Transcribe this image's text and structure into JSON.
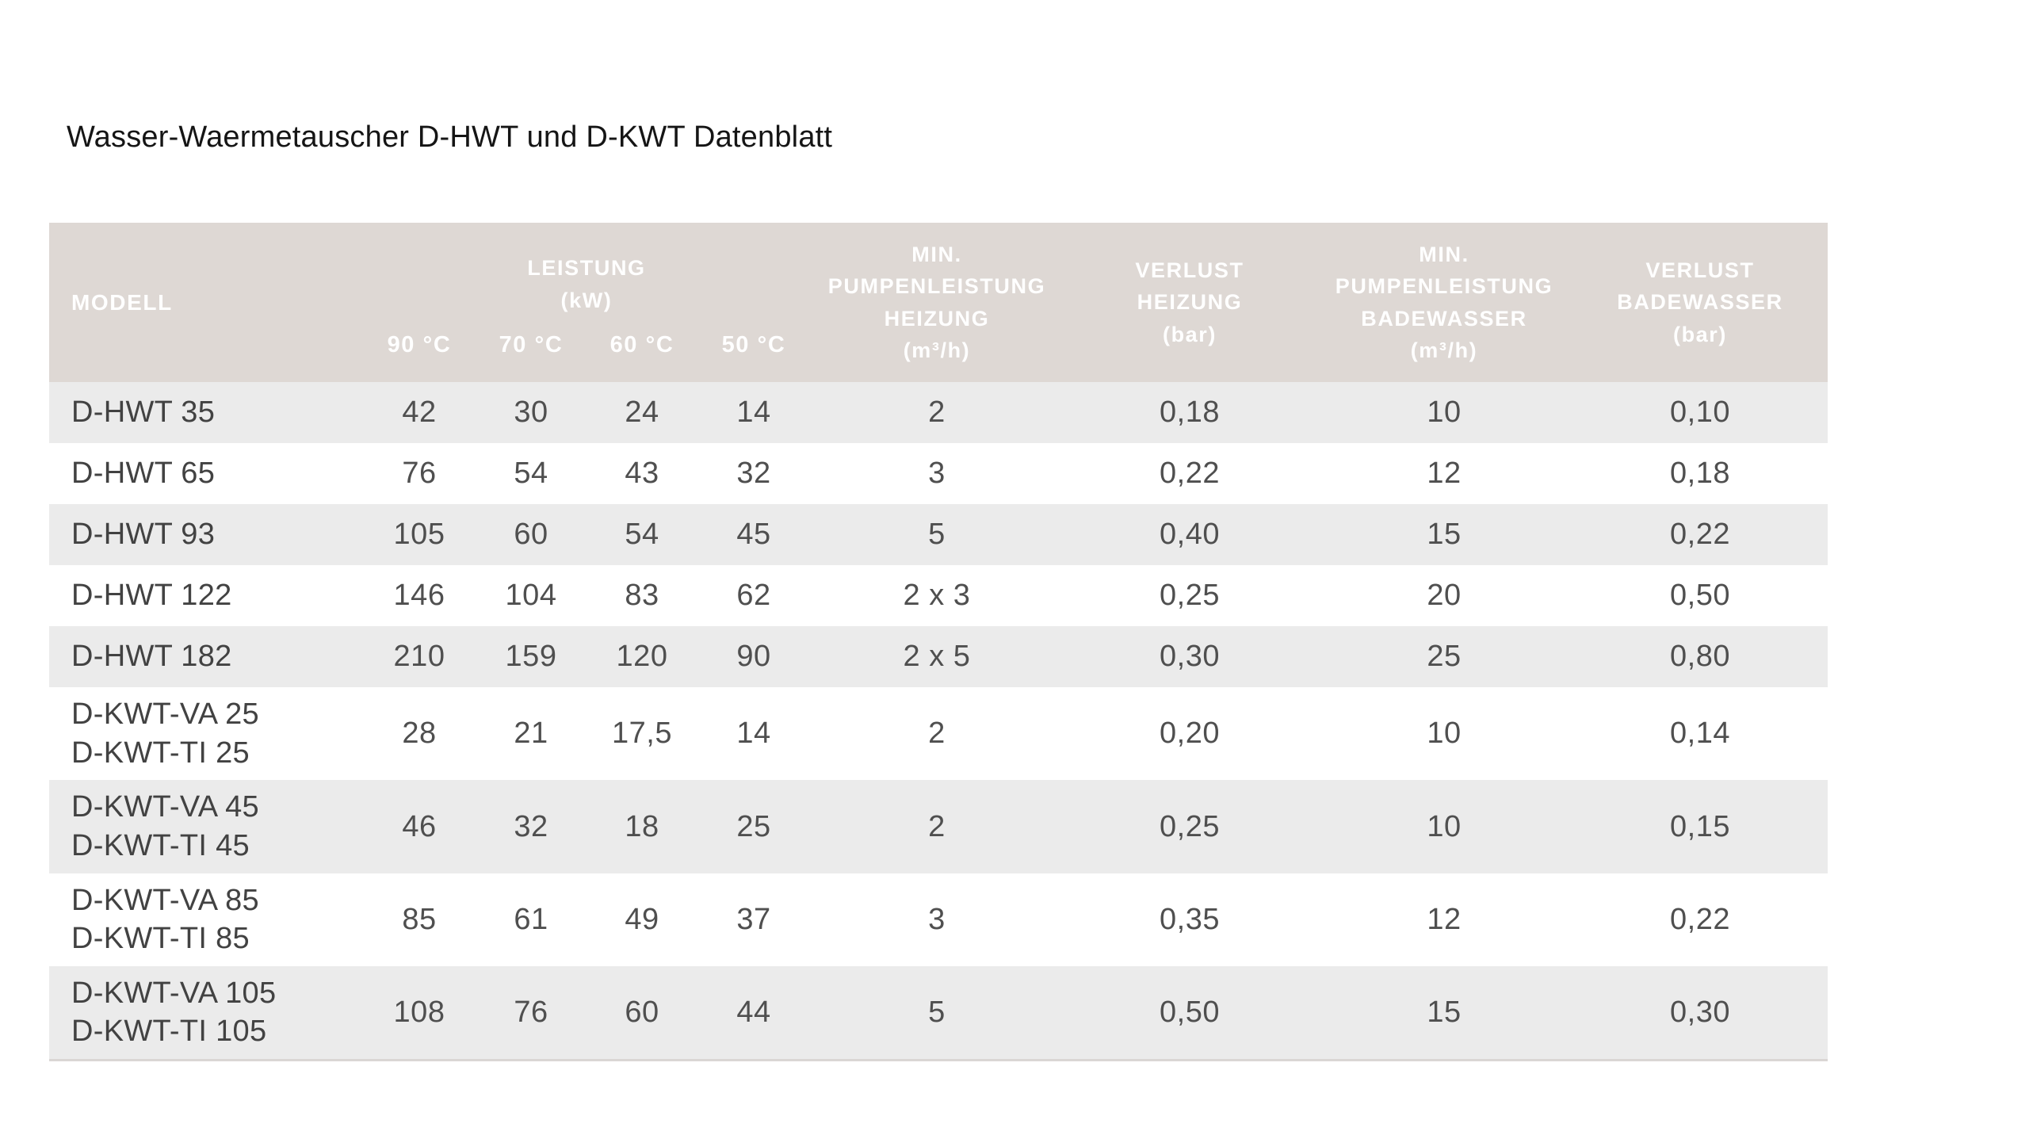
{
  "page": {
    "title": "Wasser-Waermetauscher D-HWT und D-KWT Datenblatt"
  },
  "colors": {
    "page_bg": "#ffffff",
    "header_bg": "#ded8d4",
    "header_text": "#ffffff",
    "stripe_bg": "#ebebeb",
    "row_bg": "#ffffff",
    "body_text": "#4f4f4f",
    "title_text": "#151515"
  },
  "table": {
    "headers": {
      "modell": "MODELL",
      "leistung": "LEISTUNG\n(kW)",
      "temps": [
        "90 °C",
        "70 °C",
        "60 °C",
        "50 °C"
      ],
      "min_pump_heizung": "MIN.\nPUMPENLEISTUNG\nHEIZUNG\n(m³/h)",
      "verlust_heizung": "VERLUST\nHEIZUNG\n(bar)",
      "min_pump_badewasser": "MIN.\nPUMPENLEISTUNG\nBADEWASSER\n(m³/h)",
      "verlust_badewasser": "VERLUST\nBADEWASSER\n(bar)"
    },
    "rows": [
      {
        "model": "D-HWT 35",
        "values": [
          "42",
          "30",
          "24",
          "14",
          "2",
          "0,18",
          "10",
          "0,10"
        ]
      },
      {
        "model": "D-HWT 65",
        "values": [
          "76",
          "54",
          "43",
          "32",
          "3",
          "0,22",
          "12",
          "0,18"
        ]
      },
      {
        "model": "D-HWT 93",
        "values": [
          "105",
          "60",
          "54",
          "45",
          "5",
          "0,40",
          "15",
          "0,22"
        ]
      },
      {
        "model": "D-HWT 122",
        "values": [
          "146",
          "104",
          "83",
          "62",
          "2 x 3",
          "0,25",
          "20",
          "0,50"
        ]
      },
      {
        "model": "D-HWT 182",
        "values": [
          "210",
          "159",
          "120",
          "90",
          "2 x 5",
          "0,30",
          "25",
          "0,80"
        ]
      },
      {
        "model": "D-KWT-VA 25\nD-KWT-TI 25",
        "values": [
          "28",
          "21",
          "17,5",
          "14",
          "2",
          "0,20",
          "10",
          "0,14"
        ]
      },
      {
        "model": "D-KWT-VA 45\nD-KWT-TI 45",
        "values": [
          "46",
          "32",
          "18",
          "25",
          "2",
          "0,25",
          "10",
          "0,15"
        ]
      },
      {
        "model": "D-KWT-VA 85\nD-KWT-TI 85",
        "values": [
          "85",
          "61",
          "49",
          "37",
          "3",
          "0,35",
          "12",
          "0,22"
        ]
      },
      {
        "model": "D-KWT-VA 105\nD-KWT-TI 105",
        "values": [
          "108",
          "76",
          "60",
          "44",
          "5",
          "0,50",
          "15",
          "0,30"
        ]
      }
    ]
  }
}
